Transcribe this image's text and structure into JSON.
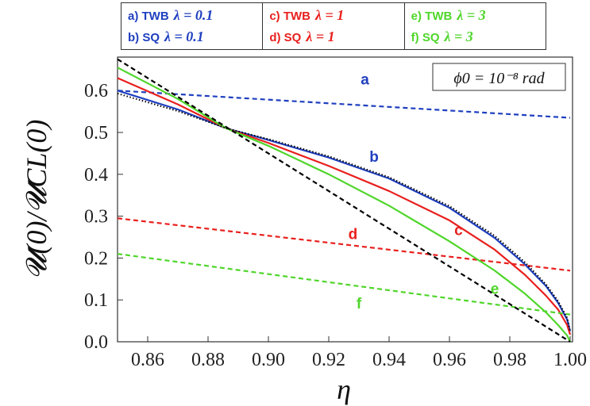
{
  "legend": {
    "columns": [
      [
        {
          "label": "a) TWB",
          "lambda": "λ = 0.1",
          "color": "#1f3fbf"
        },
        {
          "label": "b) SQ",
          "lambda": "λ = 0.1",
          "color": "#1f3fbf"
        }
      ],
      [
        {
          "label": "c) TWB",
          "lambda": "λ = 1",
          "color": "#e8201e"
        },
        {
          "label": "d) SQ",
          "lambda": "λ = 1",
          "color": "#e8201e"
        }
      ],
      [
        {
          "label": "e) TWB",
          "lambda": "λ = 3",
          "color": "#4fd62a"
        },
        {
          "label": "f) SQ",
          "lambda": "λ = 3",
          "color": "#4fd62a"
        }
      ]
    ]
  },
  "chart_data": {
    "type": "line",
    "xlabel": "η",
    "ylabel": "𝓤(0)/𝓤CL(0)",
    "annotation": "ϕ0 = 10⁻⁸ rad",
    "xlim": [
      0.85,
      1.0
    ],
    "ylim": [
      0.0,
      0.68
    ],
    "x_ticks": [
      "0.86",
      "0.88",
      "0.90",
      "0.92",
      "0.94",
      "0.96",
      "0.98",
      "1.00"
    ],
    "y_ticks": [
      "0.0",
      "0.1",
      "0.2",
      "0.3",
      "0.4",
      "0.5",
      "0.6"
    ],
    "series": [
      {
        "name": "a",
        "color": "#1f3fbf",
        "dash": "dashed",
        "x": [
          0.85,
          1.0
        ],
        "y": [
          0.6,
          0.535
        ],
        "label_at": [
          0.932,
          0.615
        ]
      },
      {
        "name": "b",
        "color": "#1f3fbf",
        "dash": "solid",
        "x": [
          0.85,
          0.87,
          0.886,
          0.9,
          0.92,
          0.94,
          0.96,
          0.975,
          0.985,
          0.992,
          0.996,
          0.999,
          1.0
        ],
        "y": [
          0.6,
          0.555,
          0.51,
          0.482,
          0.44,
          0.39,
          0.32,
          0.248,
          0.185,
          0.133,
          0.093,
          0.053,
          0.025
        ],
        "label_at": [
          0.935,
          0.43
        ]
      },
      {
        "name": "c",
        "color": "#e8201e",
        "dash": "solid",
        "x": [
          0.85,
          0.87,
          0.886,
          0.9,
          0.92,
          0.94,
          0.96,
          0.975,
          0.985,
          0.992,
          0.996,
          0.999,
          1.0
        ],
        "y": [
          0.63,
          0.567,
          0.51,
          0.475,
          0.42,
          0.36,
          0.29,
          0.22,
          0.16,
          0.11,
          0.077,
          0.04,
          0.017
        ],
        "label_at": [
          0.963,
          0.255
        ]
      },
      {
        "name": "d",
        "color": "#e8201e",
        "dash": "dashed",
        "x": [
          0.85,
          1.0
        ],
        "y": [
          0.295,
          0.17
        ],
        "label_at": [
          0.928,
          0.245
        ]
      },
      {
        "name": "e",
        "color": "#4fd62a",
        "dash": "solid",
        "x": [
          0.85,
          0.87,
          0.886,
          0.9,
          0.92,
          0.94,
          0.96,
          0.975,
          0.985,
          0.992,
          0.996,
          0.999,
          1.0
        ],
        "y": [
          0.655,
          0.58,
          0.51,
          0.468,
          0.4,
          0.325,
          0.24,
          0.17,
          0.115,
          0.07,
          0.04,
          0.015,
          0.0
        ],
        "label_at": [
          0.975,
          0.115
        ]
      },
      {
        "name": "f",
        "color": "#4fd62a",
        "dash": "dashed",
        "x": [
          0.85,
          1.0
        ],
        "y": [
          0.21,
          0.065
        ],
        "label_at": [
          0.93,
          0.08
        ]
      },
      {
        "name": "",
        "color": "#000000",
        "dash": "dotted",
        "x": [
          0.85,
          0.87,
          0.886,
          0.9,
          0.92,
          0.94,
          0.96,
          0.975,
          0.985,
          0.992,
          0.996,
          0.999,
          1.0
        ],
        "y": [
          0.593,
          0.551,
          0.51,
          0.484,
          0.443,
          0.393,
          0.324,
          0.253,
          0.19,
          0.137,
          0.097,
          0.057,
          0.025
        ]
      },
      {
        "name": "",
        "color": "#000000",
        "dash": "dashed",
        "x": [
          0.85,
          1.0
        ],
        "y": [
          0.675,
          0.0
        ]
      }
    ]
  }
}
